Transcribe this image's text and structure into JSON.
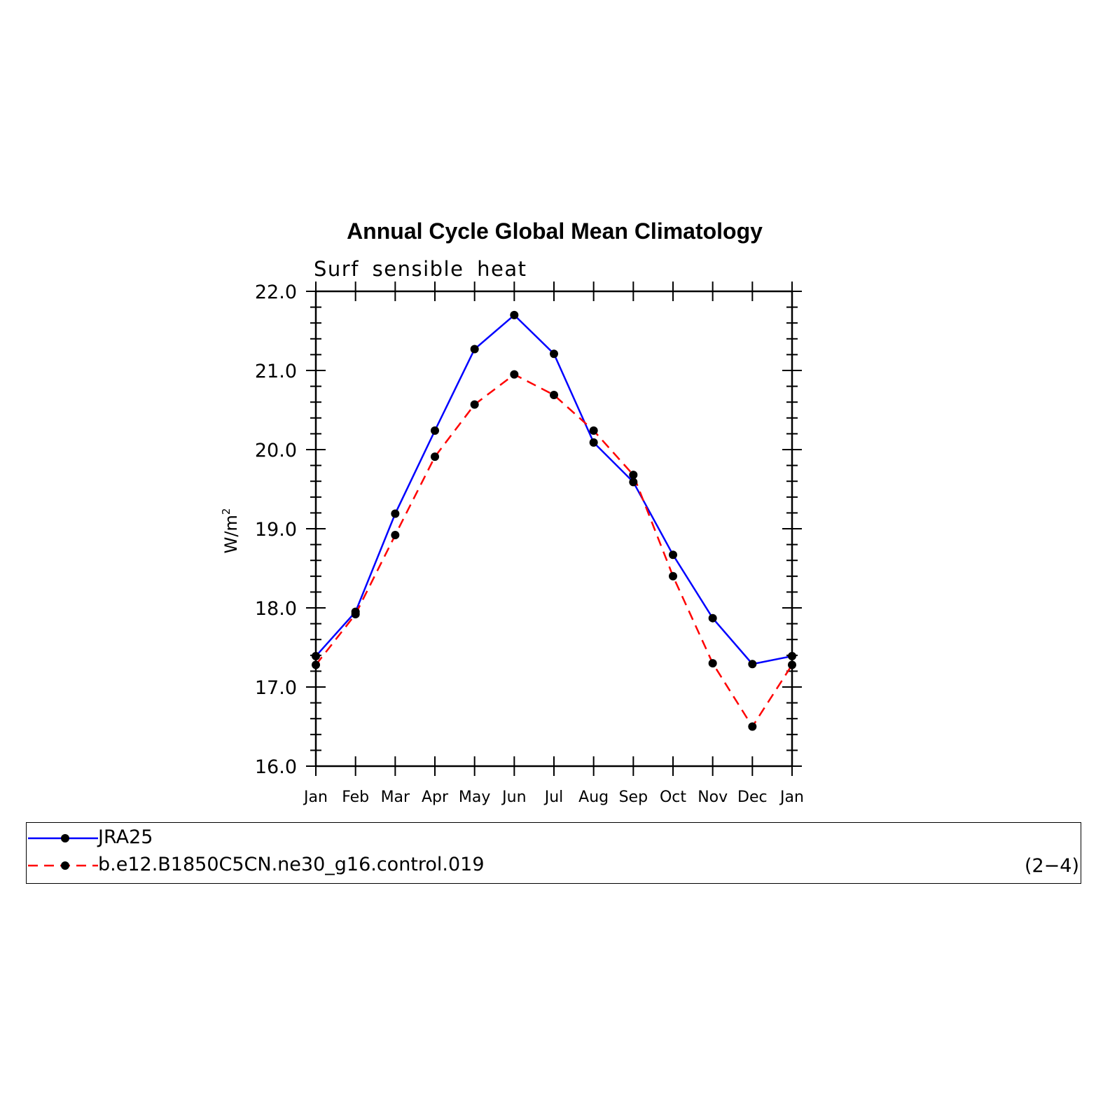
{
  "chart_data": {
    "type": "line",
    "title": "Annual Cycle Global Mean Climatology",
    "subtitle": "Surf sensible heat",
    "xlabel": "",
    "ylabel": "W/m",
    "ylabel_sup": "2",
    "categories": [
      "Jan",
      "Feb",
      "Mar",
      "Apr",
      "May",
      "Jun",
      "Jul",
      "Aug",
      "Sep",
      "Oct",
      "Nov",
      "Dec",
      "Jan"
    ],
    "ylim": [
      16.0,
      22.0
    ],
    "yticks": [
      "16.0",
      "17.0",
      "18.0",
      "19.0",
      "20.0",
      "21.0",
      "22.0"
    ],
    "grid": false,
    "legend_position": "bottom",
    "series": [
      {
        "name": "JRA25",
        "color": "#0000ff",
        "dash": "solid",
        "values": [
          17.39,
          17.95,
          19.19,
          20.24,
          21.27,
          21.7,
          21.21,
          20.09,
          19.59,
          18.67,
          17.87,
          17.29,
          17.39
        ]
      },
      {
        "name": "b.e12.B1850C5CN.ne30_g16.control.019",
        "color": "#ff0000",
        "dash": "dashed",
        "values": [
          17.28,
          17.92,
          18.92,
          19.91,
          20.57,
          20.95,
          20.69,
          20.24,
          19.68,
          18.4,
          17.3,
          16.5,
          17.28
        ]
      }
    ]
  },
  "panel_tag": "(2−4)"
}
